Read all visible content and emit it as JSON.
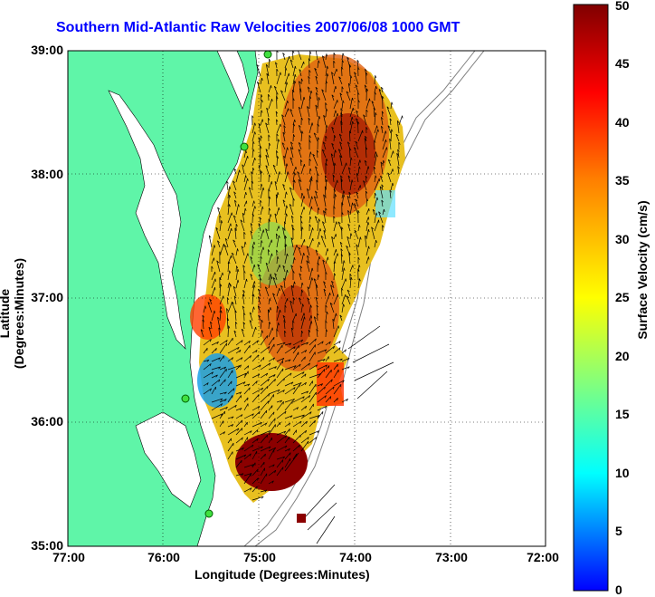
{
  "title": "Southern Mid-Atlantic Raw Velocities 2007/06/08 1000 GMT",
  "x_axis": {
    "label": "Longitude (Degrees:Minutes)",
    "ticks": [
      "77:00",
      "76:00",
      "75:00",
      "74:00",
      "73:00",
      "72:00"
    ]
  },
  "y_axis": {
    "label": "Latitude (Degrees:Minutes)",
    "ticks": [
      "39:00",
      "38:00",
      "37:00",
      "36:00",
      "35:00"
    ]
  },
  "colorbar": {
    "label": "Surface Velocity (cm/s)",
    "ticks": [
      "50",
      "45",
      "40",
      "35",
      "30",
      "25",
      "20",
      "15",
      "10",
      "5",
      "0"
    ],
    "range": [
      0,
      50
    ],
    "colors": [
      "#0000ff",
      "#00ffff",
      "#ffff00",
      "#ff8000",
      "#ff0000",
      "#800000"
    ]
  },
  "map": {
    "land_color": "#5ff5a8",
    "grid": "dotted",
    "x_range_deg": [
      -77,
      -72
    ],
    "y_range_deg": [
      35,
      39
    ]
  },
  "chart_data": {
    "type": "heatmap",
    "xlabel": "Longitude (Degrees:Minutes)",
    "ylabel": "Latitude (Degrees:Minutes)",
    "xlim": [
      -77,
      -72
    ],
    "ylim": [
      35,
      39
    ],
    "colorbar_range": [
      0,
      50
    ],
    "colorbar_label": "Surface Velocity (cm/s)"
  }
}
